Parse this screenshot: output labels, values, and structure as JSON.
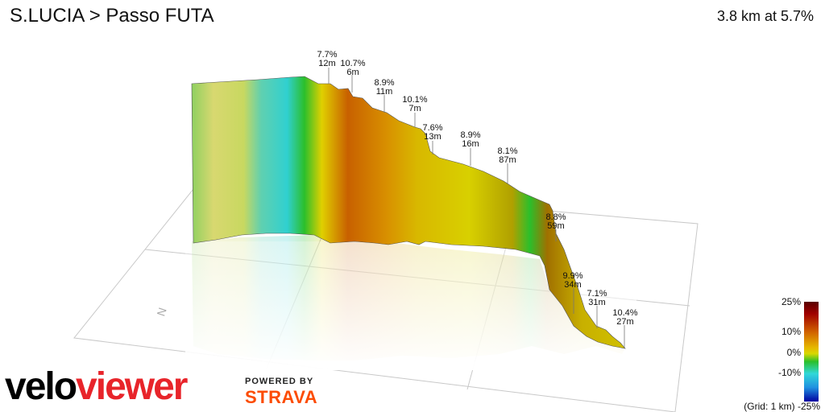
{
  "header": {
    "title": "S.LUCIA > Passo FUTA",
    "summary": "3.8 km at 5.7%"
  },
  "annotations": [
    {
      "grade": "7.7%",
      "length": "12m"
    },
    {
      "grade": "10.7%",
      "length": "6m"
    },
    {
      "grade": "8.9%",
      "length": "11m"
    },
    {
      "grade": "10.1%",
      "length": "7m"
    },
    {
      "grade": "7.6%",
      "length": "13m"
    },
    {
      "grade": "8.9%",
      "length": "16m"
    },
    {
      "grade": "8.1%",
      "length": "87m"
    },
    {
      "grade": "8.8%",
      "length": "59m"
    },
    {
      "grade": "9.9%",
      "length": "34m"
    },
    {
      "grade": "7.1%",
      "length": "31m"
    },
    {
      "grade": "10.4%",
      "length": "27m"
    }
  ],
  "legend": {
    "labels": [
      "25%",
      "10%",
      "0%",
      "-10%",
      "-25%"
    ],
    "grid_note": "(Grid: 1 km)"
  },
  "compass": "N",
  "branding": {
    "velo": "velo",
    "viewer": "viewer",
    "powered_by": "POWERED BY",
    "strava": "STRAVA"
  },
  "colors": {
    "brand_red": "#e8242a",
    "strava_orange": "#fc4c02"
  }
}
